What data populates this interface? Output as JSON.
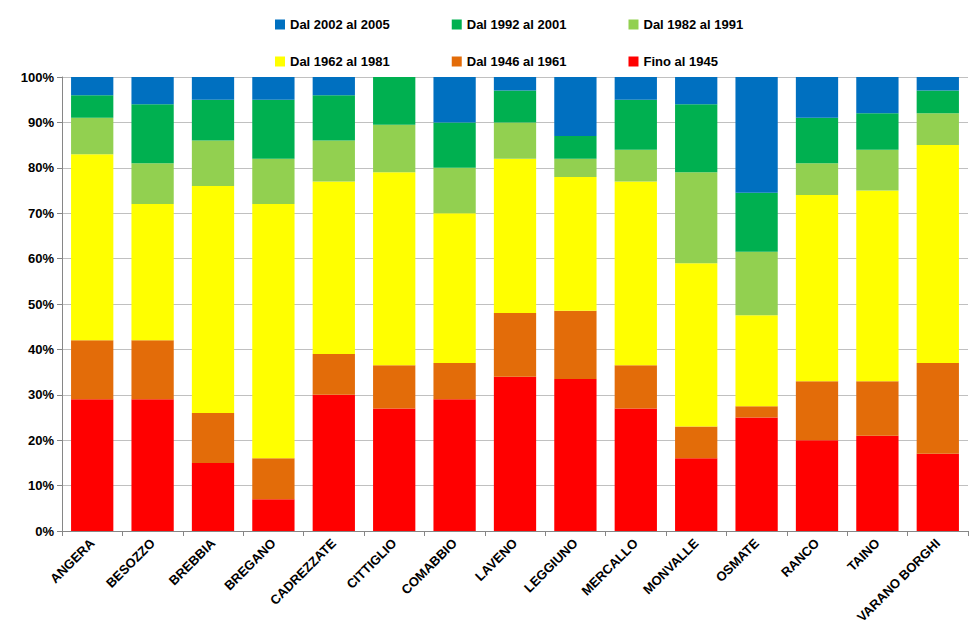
{
  "chart_data": {
    "type": "bar",
    "stacked": true,
    "grid": true,
    "legend": "top",
    "categories": [
      "ANGERA",
      "BESOZZO",
      "BREBBIA",
      "BREGANO",
      "CADREZZATE",
      "CITTIGLIO",
      "COMABBIO",
      "LAVENO",
      "LEGGIUNO",
      "MERCALLO",
      "MONVALLE",
      "OSMATE",
      "RANCO",
      "TAINO",
      "VARANO BORGHI"
    ],
    "series": [
      {
        "name": "Fino al 1945",
        "color": "#FF0000",
        "values": [
          29,
          29,
          15,
          7,
          30,
          27,
          29,
          34,
          33.5,
          27,
          16,
          25,
          20,
          21,
          17
        ]
      },
      {
        "name": "Dal 1946 al 1961",
        "color": "#E36C09",
        "values": [
          13,
          13,
          11,
          9,
          9,
          9.5,
          8,
          14,
          15,
          9.5,
          7,
          2.5,
          13,
          12,
          20
        ]
      },
      {
        "name": "Dal 1962 al 1981",
        "color": "#FFFF00",
        "values": [
          41,
          30,
          50,
          56,
          38,
          42.5,
          33,
          34,
          29.5,
          40.5,
          36,
          20,
          41,
          42,
          48
        ]
      },
      {
        "name": "Dal 1982 al 1991",
        "color": "#92D050",
        "values": [
          8,
          9,
          10,
          10,
          9,
          10.5,
          10,
          8,
          4,
          7,
          20,
          14,
          7,
          9,
          7
        ]
      },
      {
        "name": "Dal 1992 al 2001",
        "color": "#00B050",
        "values": [
          5,
          13,
          9,
          13,
          10,
          10.5,
          10,
          7,
          5,
          11,
          15,
          13,
          10,
          8,
          5
        ]
      },
      {
        "name": "Dal 2002 al 2005",
        "color": "#0070C0",
        "values": [
          4,
          6,
          5,
          5,
          4,
          0,
          10,
          3,
          13,
          5,
          6,
          25.5,
          9,
          8,
          3
        ]
      }
    ],
    "ylim": [
      0,
      100
    ],
    "yticks": [
      {
        "value": 0,
        "label": "0%"
      },
      {
        "value": 10,
        "label": "10%"
      },
      {
        "value": 20,
        "label": "20%"
      },
      {
        "value": 30,
        "label": "30%"
      },
      {
        "value": 40,
        "label": "40%"
      },
      {
        "value": 50,
        "label": "50%"
      },
      {
        "value": 60,
        "label": "60%"
      },
      {
        "value": 70,
        "label": "70%"
      },
      {
        "value": 80,
        "label": "80%"
      },
      {
        "value": 90,
        "label": "90%"
      },
      {
        "value": 100,
        "label": "100%"
      }
    ]
  }
}
